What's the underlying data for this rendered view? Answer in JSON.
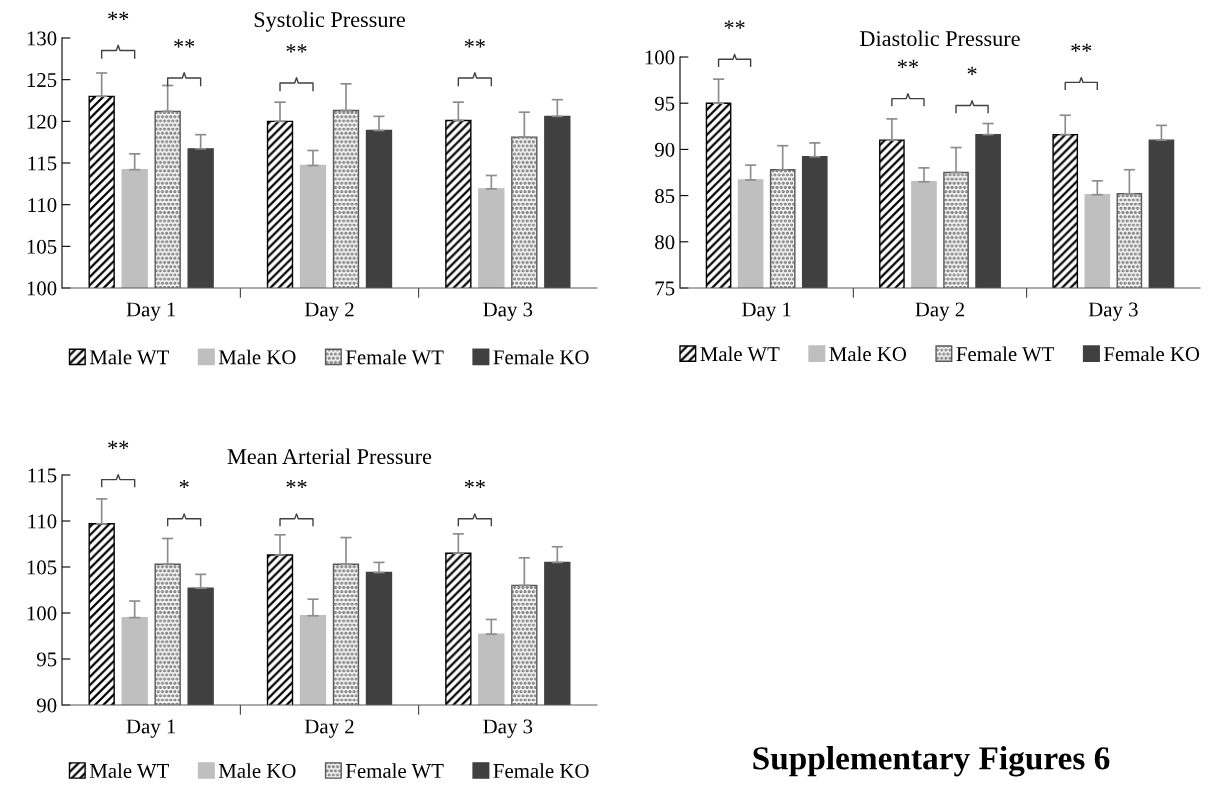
{
  "chart_data": [
    {
      "type": "bar",
      "title": "Systolic Pressure",
      "categories": [
        "Day 1",
        "Day 2",
        "Day 3"
      ],
      "ylim": [
        100,
        130
      ],
      "yticks": [
        100,
        105,
        110,
        115,
        120,
        125,
        130
      ],
      "grid": false,
      "legend": "bottom",
      "series": [
        {
          "name": "Male WT",
          "color": "#000000",
          "values": [
            123.0,
            120.0,
            120.1
          ],
          "errors": [
            [
              123.0,
              125.8
            ],
            [
              120.0,
              122.3
            ],
            [
              120.1,
              122.3
            ]
          ]
        },
        {
          "name": "Male KO",
          "color": "#bfbfbf",
          "values": [
            114.2,
            114.7,
            111.9
          ],
          "errors": [
            [
              114.2,
              116.1
            ],
            [
              114.7,
              116.5
            ],
            [
              111.9,
              113.5
            ]
          ]
        },
        {
          "name": "Female WT",
          "color": "#595959",
          "values": [
            121.2,
            121.3,
            118.1
          ],
          "errors": [
            [
              121.2,
              124.3
            ],
            [
              121.3,
              124.5
            ],
            [
              118.1,
              121.1
            ]
          ]
        },
        {
          "name": "Female KO",
          "color": "#404040",
          "values": [
            116.7,
            118.9,
            120.6
          ],
          "errors": [
            [
              116.7,
              118.4
            ],
            [
              118.9,
              120.6
            ],
            [
              120.6,
              122.6
            ]
          ]
        }
      ],
      "annotations": [
        "**",
        "**",
        "**",
        "**"
      ]
    },
    {
      "type": "bar",
      "title": "Diastolic Pressure",
      "categories": [
        "Day 1",
        "Day 2",
        "Day 3"
      ],
      "ylim": [
        75,
        100
      ],
      "yticks": [
        75,
        80,
        85,
        90,
        95,
        100
      ],
      "grid": false,
      "legend": "bottom",
      "series": [
        {
          "name": "Male WT",
          "color": "#000000",
          "values": [
            95.0,
            91.0,
            91.6
          ],
          "errors": [
            [
              95.0,
              97.6
            ],
            [
              91.0,
              93.3
            ],
            [
              91.6,
              93.7
            ]
          ]
        },
        {
          "name": "Male KO",
          "color": "#bfbfbf",
          "values": [
            86.7,
            86.5,
            85.1
          ],
          "errors": [
            [
              86.7,
              88.3
            ],
            [
              86.5,
              88.0
            ],
            [
              85.1,
              86.6
            ]
          ]
        },
        {
          "name": "Female WT",
          "color": "#595959",
          "values": [
            87.8,
            87.5,
            85.2
          ],
          "errors": [
            [
              87.8,
              90.4
            ],
            [
              87.5,
              90.2
            ],
            [
              85.2,
              87.8
            ]
          ]
        },
        {
          "name": "Female KO",
          "color": "#404040",
          "values": [
            89.2,
            91.6,
            91.0
          ],
          "errors": [
            [
              89.2,
              90.7
            ],
            [
              91.6,
              92.8
            ],
            [
              91.0,
              92.6
            ]
          ]
        }
      ],
      "annotations": [
        "**",
        "**",
        "*",
        "**"
      ]
    },
    {
      "type": "bar",
      "title": "Mean Arterial Pressure",
      "categories": [
        "Day 1",
        "Day 2",
        "Day 3"
      ],
      "ylim": [
        90,
        115
      ],
      "yticks": [
        90,
        95,
        100,
        105,
        110,
        115
      ],
      "grid": false,
      "legend": "bottom",
      "series": [
        {
          "name": "Male WT",
          "color": "#000000",
          "values": [
            109.7,
            106.3,
            106.5
          ],
          "errors": [
            [
              109.7,
              112.4
            ],
            [
              106.3,
              108.5
            ],
            [
              106.5,
              108.6
            ]
          ]
        },
        {
          "name": "Male KO",
          "color": "#bfbfbf",
          "values": [
            99.5,
            99.7,
            97.7
          ],
          "errors": [
            [
              99.5,
              101.3
            ],
            [
              99.7,
              101.5
            ],
            [
              97.7,
              99.3
            ]
          ]
        },
        {
          "name": "Female WT",
          "color": "#595959",
          "values": [
            105.3,
            105.3,
            103.0
          ],
          "errors": [
            [
              105.3,
              108.1
            ],
            [
              105.3,
              108.2
            ],
            [
              103.0,
              106.0
            ]
          ]
        },
        {
          "name": "Female KO",
          "color": "#404040",
          "values": [
            102.7,
            104.4,
            105.5
          ],
          "errors": [
            [
              102.7,
              104.2
            ],
            [
              104.4,
              105.5
            ],
            [
              105.5,
              107.2
            ]
          ]
        }
      ],
      "annotations": [
        "**",
        "*",
        "**",
        "**",
        "Supplementary Figures 6"
      ]
    }
  ]
}
